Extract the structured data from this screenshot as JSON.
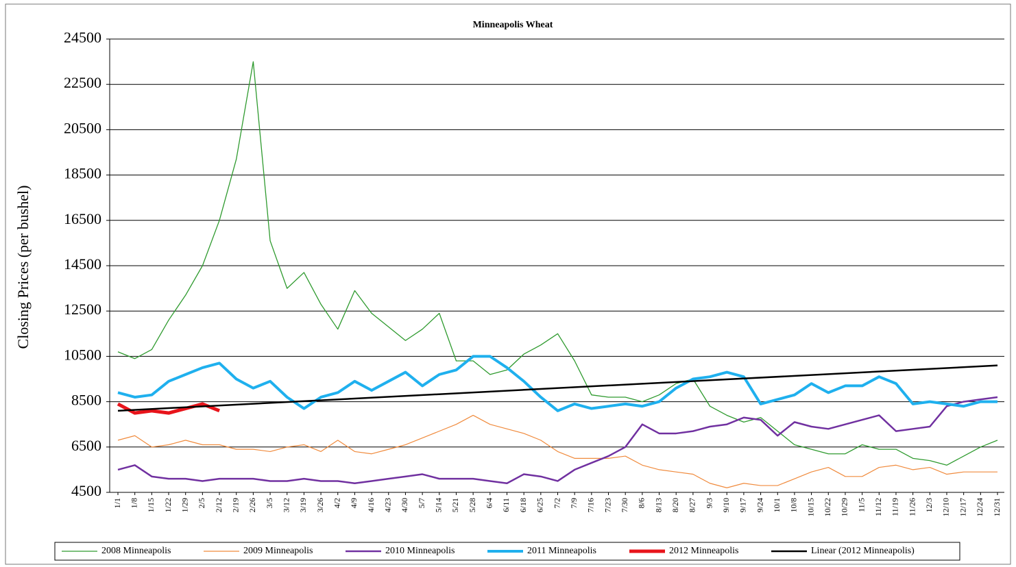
{
  "chart_data": {
    "type": "line",
    "title": "Minneapolis Wheat",
    "y_label": "Closing Prices (per bushel)",
    "categories": [
      "1/1",
      "1/8",
      "1/15",
      "1/22",
      "1/29",
      "2/5",
      "2/12",
      "2/19",
      "2/26",
      "3/5",
      "3/12",
      "3/19",
      "3/26",
      "4/2",
      "4/9",
      "4/16",
      "4/23",
      "4/30",
      "5/7",
      "5/14",
      "5/21",
      "5/28",
      "6/4",
      "6/11",
      "6/18",
      "6/25",
      "7/2",
      "7/9",
      "7/16",
      "7/23",
      "7/30",
      "8/6",
      "8/13",
      "8/20",
      "8/27",
      "9/3",
      "9/10",
      "9/17",
      "9/24",
      "10/1",
      "10/8",
      "10/15",
      "10/22",
      "10/29",
      "11/5",
      "11/12",
      "11/19",
      "11/26",
      "12/3",
      "12/10",
      "12/17",
      "12/24",
      "12/31"
    ],
    "series": [
      {
        "name": "2008 Minneapolis",
        "color": "#2e9a2e",
        "line_width": 1.3,
        "values": [
          10700,
          10400,
          10800,
          12100,
          13200,
          14500,
          16500,
          19200,
          23500,
          15600,
          13500,
          14200,
          12800,
          11700,
          13400,
          12400,
          11800,
          11200,
          11700,
          12400,
          10300,
          10300,
          9700,
          9900,
          10600,
          11000,
          11500,
          10300,
          8800,
          8700,
          8700,
          8500,
          8800,
          9300,
          9500,
          8300,
          7900,
          7600,
          7800,
          7200,
          6600,
          6400,
          6200,
          6200,
          6600,
          6400,
          6400,
          6000,
          5900,
          5700,
          6100,
          6500,
          6800
        ]
      },
      {
        "name": "2009 Minneapolis",
        "color": "#f08a3c",
        "line_width": 1.2,
        "values": [
          6800,
          7000,
          6500,
          6600,
          6800,
          6600,
          6600,
          6400,
          6400,
          6300,
          6500,
          6600,
          6300,
          6800,
          6300,
          6200,
          6400,
          6600,
          6900,
          7200,
          7500,
          7900,
          7500,
          7300,
          7100,
          6800,
          6300,
          6000,
          6000,
          6000,
          6100,
          5700,
          5500,
          5400,
          5300,
          4900,
          4700,
          4900,
          4800,
          4800,
          5100,
          5400,
          5600,
          5200,
          5200,
          5600,
          5700,
          5500,
          5600,
          5300,
          5400,
          5400,
          5400
        ]
      },
      {
        "name": "2010 Minneapolis",
        "color": "#7030a0",
        "line_width": 2.5,
        "values": [
          5500,
          5700,
          5200,
          5100,
          5100,
          5000,
          5100,
          5100,
          5100,
          5000,
          5000,
          5100,
          5000,
          5000,
          4900,
          5000,
          5100,
          5200,
          5300,
          5100,
          5100,
          5100,
          5000,
          4900,
          5300,
          5200,
          5000,
          5500,
          5800,
          6100,
          6500,
          7500,
          7100,
          7100,
          7200,
          7400,
          7500,
          7800,
          7700,
          7000,
          7600,
          7400,
          7300,
          7500,
          7700,
          7900,
          7200,
          7300,
          7400,
          8300,
          8500,
          8600,
          8700
        ]
      },
      {
        "name": "2011 Minneapolis",
        "color": "#1fb0ee",
        "line_width": 4,
        "values": [
          8900,
          8700,
          8800,
          9400,
          9700,
          10000,
          10200,
          9500,
          9100,
          9400,
          8700,
          8200,
          8700,
          8900,
          9400,
          9000,
          9400,
          9800,
          9200,
          9700,
          9900,
          10500,
          10500,
          10000,
          9400,
          8700,
          8100,
          8400,
          8200,
          8300,
          8400,
          8300,
          8500,
          9100,
          9500,
          9600,
          9800,
          9600,
          8400,
          8600,
          8800,
          9300,
          8900,
          9200,
          9200,
          9600,
          9300,
          8400,
          8500,
          8400,
          8300,
          8500,
          8500
        ]
      },
      {
        "name": "2012 Minneapolis",
        "color": "#e8141b",
        "line_width": 5,
        "values": [
          8400,
          8000,
          8100,
          8000,
          8200,
          8400,
          8100,
          null,
          null,
          null,
          null,
          null,
          null,
          null,
          null,
          null,
          null,
          null,
          null,
          null,
          null,
          null,
          null,
          null,
          null,
          null,
          null,
          null,
          null,
          null,
          null,
          null,
          null,
          null,
          null,
          null,
          null,
          null,
          null,
          null,
          null,
          null,
          null,
          null,
          null,
          null,
          null,
          null,
          null,
          null,
          null,
          null,
          null
        ]
      }
    ],
    "trendline": {
      "name": "Linear (2012 Minneapolis)",
      "color": "#000000",
      "line_width": 2.5,
      "from": 8100,
      "to": 10100
    },
    "ylim": [
      4500,
      24500
    ],
    "yticks": [
      4500,
      6500,
      8500,
      10500,
      12500,
      14500,
      16500,
      18500,
      20500,
      22500,
      24500
    ],
    "grid": true
  }
}
